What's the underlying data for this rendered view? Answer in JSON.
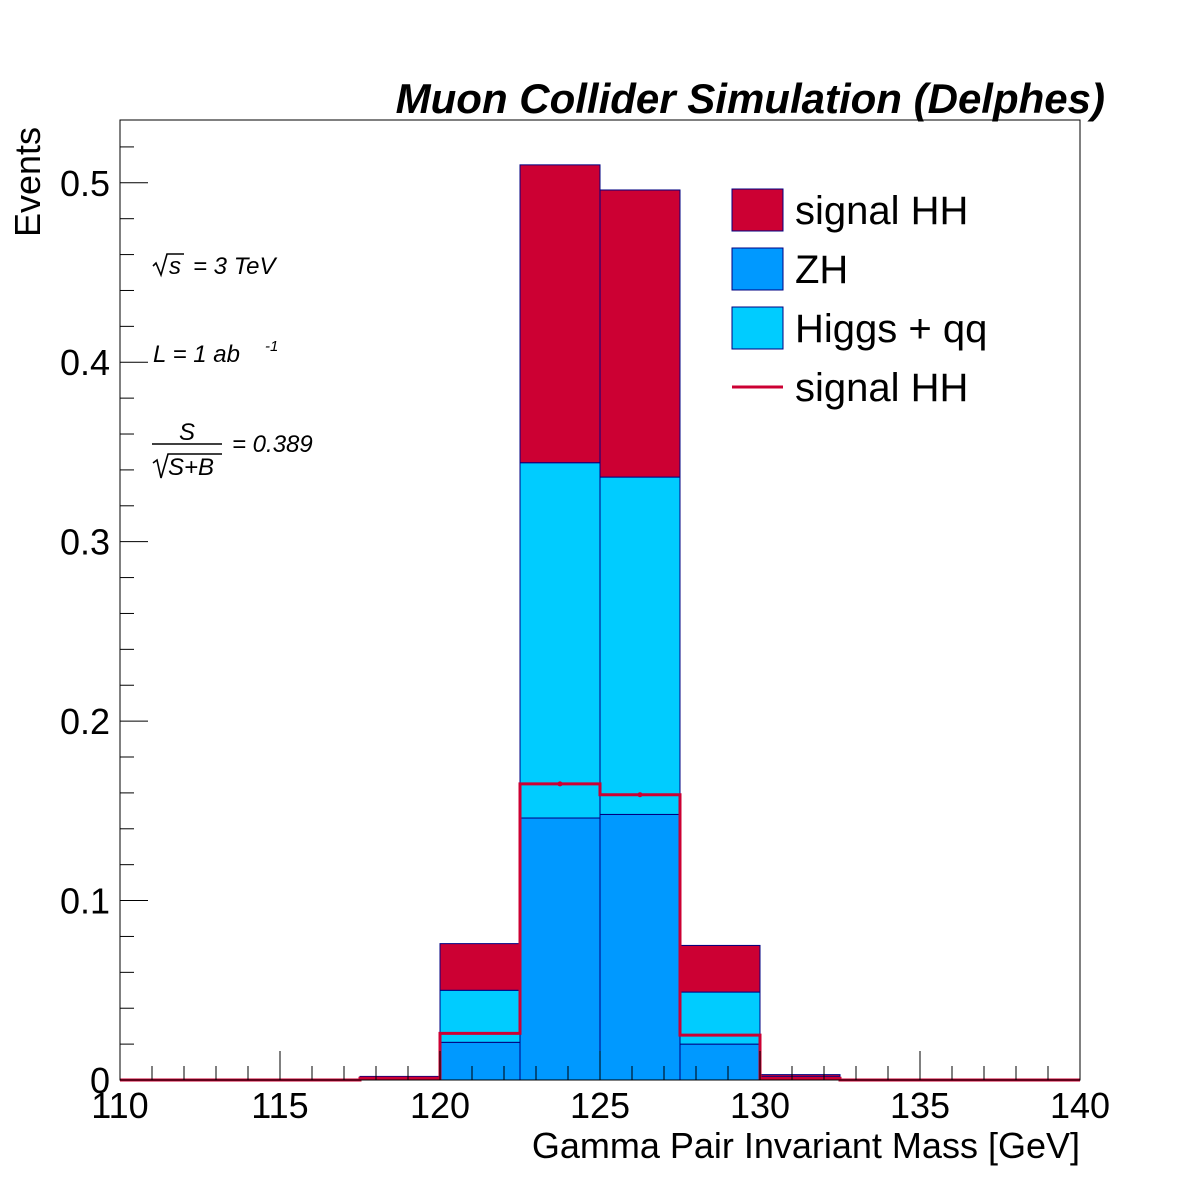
{
  "chart_data": {
    "type": "bar",
    "stacked": true,
    "title": "Muon Collider Simulation (Delphes)",
    "xlabel": "Gamma Pair Invariant Mass [GeV]",
    "ylabel": "Events",
    "xlim": [
      110,
      140
    ],
    "ylim": [
      0,
      0.535
    ],
    "x_ticks": [
      110,
      115,
      120,
      125,
      130,
      135,
      140
    ],
    "x_tick_labels": [
      "110",
      "115",
      "120",
      "125",
      "130",
      "135",
      "140"
    ],
    "y_ticks": [
      0,
      0.1,
      0.2,
      0.3,
      0.4,
      0.5
    ],
    "y_tick_labels": [
      "0",
      "0.1",
      "0.2",
      "0.3",
      "0.4",
      "0.5"
    ],
    "bin_edges": [
      110,
      112.5,
      115,
      117.5,
      120,
      122.5,
      125,
      127.5,
      130,
      132.5,
      135,
      137.5,
      140
    ],
    "series": [
      {
        "name": "ZH",
        "color": "#0099ff",
        "values": [
          0,
          0,
          0,
          0,
          0.021,
          0.146,
          0.148,
          0.02,
          0,
          0,
          0,
          0
        ]
      },
      {
        "name": "Higgs + qq",
        "color": "#00ccff",
        "values": [
          0,
          0,
          0,
          0.001,
          0.029,
          0.198,
          0.188,
          0.029,
          0.002,
          0,
          0,
          0
        ]
      },
      {
        "name": "signal HH",
        "color": "#cc0033",
        "values": [
          0,
          0,
          0,
          0.001,
          0.026,
          0.166,
          0.16,
          0.026,
          0.001,
          0,
          0,
          0
        ]
      }
    ],
    "overlay": {
      "name": "signal HH",
      "color": "#cc0033",
      "values": [
        0,
        0,
        0,
        0.001,
        0.026,
        0.165,
        0.159,
        0.025,
        0.001,
        0,
        0,
        0
      ]
    },
    "legend": {
      "placement": "top-right",
      "entries": [
        {
          "label": "signal HH",
          "style": "box",
          "color": "#cc0033"
        },
        {
          "label": "ZH",
          "style": "box",
          "color": "#0099ff"
        },
        {
          "label": "Higgs + qq",
          "style": "box",
          "color": "#00ccff"
        },
        {
          "label": "signal HH",
          "style": "line",
          "color": "#cc0033"
        }
      ]
    },
    "annotations": {
      "energy_label": "s",
      "energy_value": "=  3 TeV",
      "lumi_label": "L  =  1 ab",
      "lumi_exponent": "-1",
      "significance_num": "S",
      "significance_den": "S+B",
      "significance_value": "=  0.389"
    },
    "grid": false
  }
}
